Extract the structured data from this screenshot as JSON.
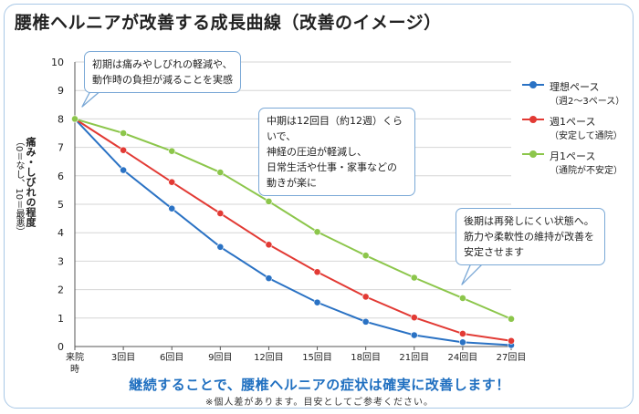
{
  "title": "腰椎ヘルニアが改善する成長曲線（改善のイメージ）",
  "colors": {
    "frame": "#a9c8e6",
    "accent": "#1f6fc0"
  },
  "y_axis": {
    "label_main": "痛み・しびれの程度",
    "label_sub": "（0＝なし、10＝最悪）"
  },
  "callouts": [
    {
      "lines": [
        "初期は痛みやしびれの軽減や、",
        "動作時の負担が減ることを実感"
      ]
    },
    {
      "lines": [
        "中期は12回目（約12週）くらいで、",
        "神経の圧迫が軽減し、",
        "日常生活や仕事・家事などの",
        "動きが楽に"
      ]
    },
    {
      "lines": [
        "後期は再発しにくい状態へ。",
        "筋力や柔軟性の維持が改善を",
        "安定させます"
      ]
    }
  ],
  "message": "継続することで、腰椎ヘルニアの症状は確実に改善します！",
  "footnote": "※個人差があります。目安としてご参考ください。",
  "chart_data": {
    "type": "line",
    "x": [
      "来院時",
      "3回目",
      "6回目",
      "9回目",
      "12回目",
      "15回目",
      "18回目",
      "21回目",
      "24回目",
      "27回目"
    ],
    "ylim": [
      0,
      10
    ],
    "yticks": [
      0,
      1,
      2,
      3,
      4,
      5,
      6,
      7,
      8,
      9,
      10
    ],
    "grid": true,
    "legend_position": "right",
    "series": [
      {
        "name": "理想ペース",
        "note": "（週2〜3ペース）",
        "color": "#2a72c4",
        "values": [
          8.0,
          6.2,
          4.85,
          3.5,
          2.4,
          1.55,
          0.87,
          0.4,
          0.15,
          0.05
        ]
      },
      {
        "name": "週1ペース",
        "note": "（安定して通院）",
        "color": "#e23a34",
        "values": [
          8.0,
          6.9,
          5.78,
          4.68,
          3.58,
          2.62,
          1.75,
          1.02,
          0.45,
          0.2
        ]
      },
      {
        "name": "月1ペース",
        "note": "（通院が不安定）",
        "color": "#8cc64b",
        "values": [
          8.0,
          7.5,
          6.87,
          6.12,
          5.1,
          4.03,
          3.2,
          2.42,
          1.7,
          0.97
        ]
      }
    ]
  }
}
